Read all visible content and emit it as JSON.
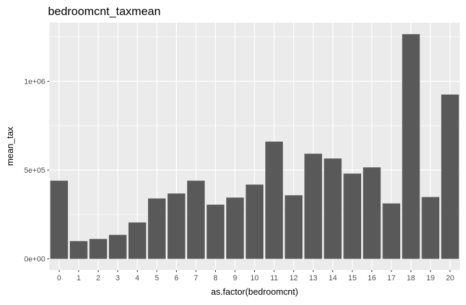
{
  "colors": {
    "panel_bg": "#ebebeb",
    "grid_major": "#ffffff",
    "bar_fill": "#595959",
    "tick_color": "#333333"
  },
  "chart_data": {
    "type": "bar",
    "title": "bedroomcnt_taxmean",
    "xlabel": "as.factor(bedroomcnt)",
    "ylabel": "mean_tax",
    "categories": [
      "0",
      "1",
      "2",
      "3",
      "4",
      "5",
      "6",
      "7",
      "8",
      "9",
      "10",
      "11",
      "12",
      "13",
      "14",
      "15",
      "16",
      "17",
      "18",
      "19",
      "20"
    ],
    "values": [
      440000,
      100000,
      112000,
      135000,
      205000,
      340000,
      368000,
      440000,
      305000,
      345000,
      418000,
      660000,
      358000,
      592000,
      565000,
      480000,
      515000,
      312000,
      1265000,
      348000,
      925000
    ],
    "y_ticks": [
      {
        "value": 0,
        "label": "0e+00"
      },
      {
        "value": 500000,
        "label": "5e+05"
      },
      {
        "value": 1000000,
        "label": "1e+06"
      }
    ],
    "ylim": [
      -63000,
      1330000
    ],
    "grid": true,
    "legend": "none"
  }
}
